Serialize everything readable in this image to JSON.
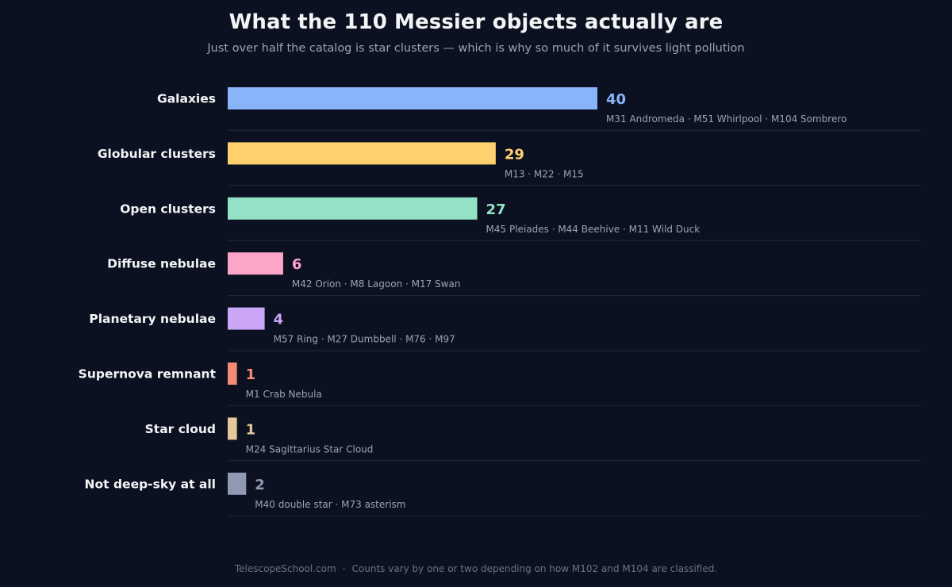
{
  "header": {
    "title": "What the 110 Messier objects actually are",
    "subtitle": "Just over half the catalog is star clusters — which is why so much of it survives light pollution"
  },
  "footer": {
    "source": "TelescopeSchool.com",
    "separator": "·",
    "note": "Counts vary by one or two depending on how M102 and M104 are classified."
  },
  "chart_data": {
    "type": "bar",
    "orientation": "horizontal",
    "title": "What the 110 Messier objects actually are",
    "subtitle": "Just over half the catalog is star clusters — which is why so much of it survives light pollution",
    "xlim": [
      0,
      40
    ],
    "grid": false,
    "categories": [
      "Galaxies",
      "Globular clusters",
      "Open clusters",
      "Diffuse nebulae",
      "Planetary nebulae",
      "Supernova remnant",
      "Star cloud",
      "Not deep-sky at all"
    ],
    "values": [
      40,
      29,
      27,
      6,
      4,
      1,
      1,
      2
    ],
    "examples": [
      "M31 Andromeda · M51 Whirlpool · M104 Sombrero",
      "M13 · M22 · M15",
      "M45 Pleiades · M44 Beehive · M11 Wild Duck",
      "M42 Orion · M8 Lagoon · M17 Swan",
      "M57 Ring · M27 Dumbbell · M76 · M97",
      "M1 Crab Nebula",
      "M24 Sagittarius Star Cloud",
      "M40 double star · M73 asterism"
    ],
    "colors": [
      "#89b4fa",
      "#ffd06e",
      "#94e2c5",
      "#fca5c8",
      "#cba6f7",
      "#f78a74",
      "#e6c99a",
      "#8f9ab2"
    ]
  }
}
